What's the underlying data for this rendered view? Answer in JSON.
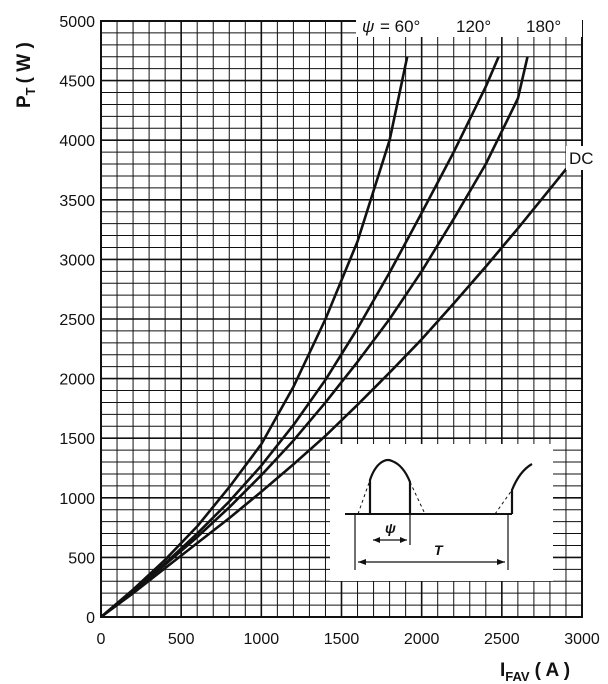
{
  "chart_data": {
    "type": "line",
    "xlabel_main": "I",
    "xlabel_sub": "FAV",
    "xlabel_unit": "( A )",
    "ylabel_main": "P",
    "ylabel_sub": "T",
    "ylabel_unit": "( W )",
    "xlim": [
      0,
      3000
    ],
    "ylim": [
      0,
      5000
    ],
    "x_ticks": [
      "0",
      "500",
      "1000",
      "1500",
      "2000",
      "2500",
      "3000"
    ],
    "y_ticks": [
      "0",
      "500",
      "1000",
      "1500",
      "2000",
      "2500",
      "3000",
      "3500",
      "4000",
      "4500",
      "5000"
    ],
    "grid": true,
    "series": [
      {
        "name": "60°",
        "x": [
          0,
          200,
          400,
          600,
          800,
          1000,
          1200,
          1400,
          1600,
          1800,
          1910
        ],
        "y": [
          0,
          230,
          480,
          760,
          1090,
          1450,
          1930,
          2500,
          3150,
          4000,
          4700
        ]
      },
      {
        "name": "120°",
        "x": [
          0,
          200,
          400,
          600,
          800,
          1000,
          1200,
          1400,
          1600,
          1800,
          2000,
          2200,
          2400,
          2480
        ],
        "y": [
          0,
          220,
          450,
          700,
          970,
          1270,
          1610,
          1990,
          2420,
          2890,
          3390,
          3900,
          4450,
          4700
        ]
      },
      {
        "name": "180°",
        "x": [
          0,
          200,
          400,
          600,
          800,
          1000,
          1200,
          1400,
          1600,
          1800,
          2000,
          2200,
          2400,
          2600,
          2660
        ],
        "y": [
          0,
          215,
          440,
          670,
          920,
          1190,
          1480,
          1800,
          2140,
          2500,
          2900,
          3340,
          3800,
          4350,
          4700
        ]
      },
      {
        "name": "DC",
        "x": [
          0,
          200,
          400,
          600,
          800,
          1000,
          1200,
          1400,
          1600,
          1800,
          2000,
          2200,
          2400,
          2600,
          2800,
          2980
        ],
        "y": [
          0,
          200,
          410,
          620,
          830,
          1050,
          1280,
          1520,
          1780,
          2050,
          2330,
          2630,
          2940,
          3260,
          3590,
          3890
        ]
      }
    ],
    "annotations": {
      "psi_symbol": "ψ",
      "psi_equals": "= 60°",
      "label_120": "120°",
      "label_180": "180°",
      "label_dc": "DC"
    },
    "inset": {
      "psi_label": "ψ",
      "period_label": "T"
    }
  }
}
